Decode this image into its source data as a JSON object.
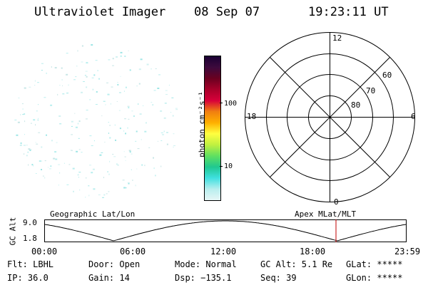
{
  "title": {
    "instrument": "Ultraviolet Imager",
    "date": "08 Sep 07",
    "time": "19:23:11 UT"
  },
  "colorbar": {
    "unit_label": "photon cm⁻²s⁻¹",
    "ticks": [
      "100",
      "10"
    ],
    "colors": [
      "#1a0033",
      "#3d0a3d",
      "#6a0020",
      "#a8002a",
      "#d8003a",
      "#f08010",
      "#ffb000",
      "#ffff40",
      "#c0f040",
      "#60e060",
      "#20c890",
      "#40e0e0",
      "#b8eeee",
      "#e6f6f6"
    ]
  },
  "polar": {
    "mlt_labels": {
      "top": "12",
      "bottom": "0",
      "left": "18",
      "right": "6"
    },
    "mlat_labels": [
      "60",
      "70",
      "80"
    ]
  },
  "timeline": {
    "gc_alt_label": "GC Alt",
    "alt_max": "9.0",
    "alt_min": "1.8",
    "left_title": "Geographic Lat/Lon",
    "right_title": "Apex MLat/MLT",
    "times": [
      "00:00",
      "06:00",
      "12:00",
      "18:00",
      "23:59"
    ],
    "marker_color": "#c00000"
  },
  "status": {
    "flt": "Flt: LBHL",
    "ip": "IP: 36.0",
    "door": "Door: Open",
    "gain": "Gain: 14",
    "mode": "Mode: Normal",
    "dsp": "Dsp: −135.1",
    "gc_alt": "GC Alt: 5.1 Re",
    "seq": "Seq: 39",
    "glat": "GLat: *****",
    "glon": "GLon: *****"
  }
}
